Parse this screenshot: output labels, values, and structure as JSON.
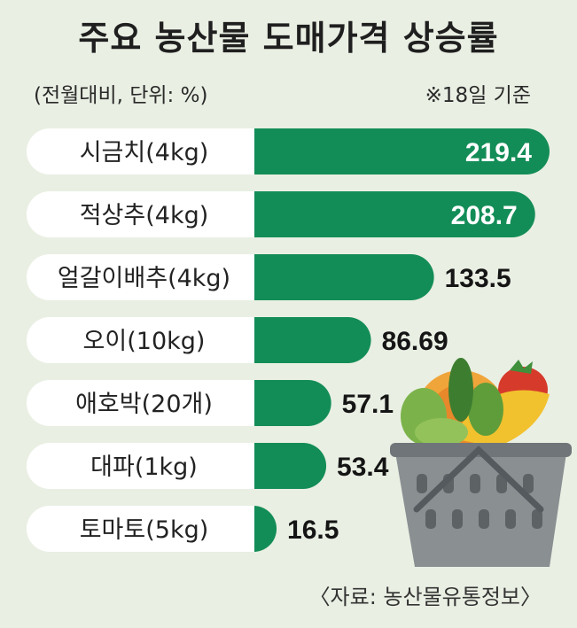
{
  "header": {
    "title": "주요 농산물 도매가격 상승률",
    "subtitle": "(전월대비, 단위: %)",
    "note": "※18일 기준"
  },
  "footer": {
    "source": "〈자료: 농산물유통정보〉"
  },
  "colors": {
    "background": "#e9efe3",
    "bar": "#138d57",
    "label_pill": "#ffffff"
  },
  "chart_data": {
    "type": "bar",
    "orientation": "horizontal",
    "title": "주요 농산물 도매가격 상승률",
    "subtitle": "(전월대비, 단위: %)",
    "categories": [
      "시금치(4kg)",
      "적상추(4kg)",
      "얼갈이배추(4kg)",
      "오이(10kg)",
      "애호박(20개)",
      "대파(1kg)",
      "토마토(5kg)"
    ],
    "values": [
      219.4,
      208.7,
      133.5,
      86.69,
      57.1,
      53.4,
      16.5
    ],
    "value_labels": [
      "219.4",
      "208.7",
      "133.5",
      "86.69",
      "57.1",
      "53.4",
      "16.5"
    ],
    "grid": false
  }
}
